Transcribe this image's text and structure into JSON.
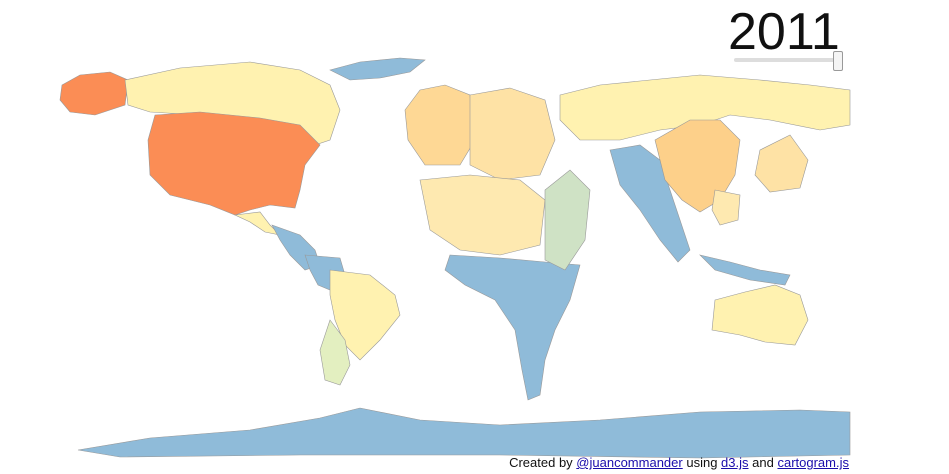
{
  "year": "2011",
  "credits": {
    "prefix": "Created by",
    "author": "@juancommander",
    "using": "using",
    "lib1": "d3.js",
    "and": "and",
    "lib2": "cartogram.js"
  }
}
